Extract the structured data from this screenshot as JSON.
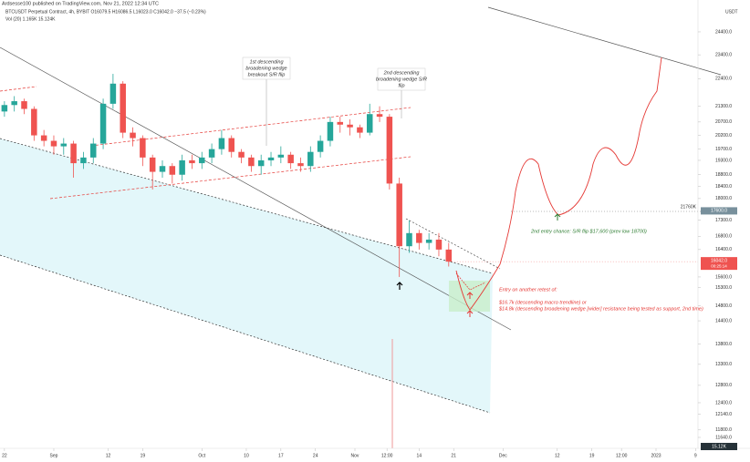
{
  "header": {
    "publisher": "Ardsesse100 published on TradingView.com, Nov 21, 2022 12:34 UTC",
    "symbol": "BTCUSDT Perpetual Contract, 4h, BYBIT  O16079.5  H16086.5  L16023.0  C16042.0  −37.5 (−0.23%)",
    "volume": "Vol (20)  1.165K  15.124K"
  },
  "chart_data": {
    "type": "candlestick",
    "log": true,
    "grid": false,
    "up_color": "#26a69a",
    "down_color": "#ef5350",
    "currency": "USDT",
    "x": [
      0,
      2,
      4,
      6,
      8,
      10,
      12,
      14,
      16,
      18,
      20,
      22,
      24,
      26,
      28,
      30,
      32,
      34,
      36,
      38,
      40,
      42,
      44,
      46,
      48,
      50,
      52,
      54,
      56,
      58,
      60,
      62,
      64,
      66,
      68,
      70,
      72,
      74,
      76,
      78,
      80,
      82,
      84,
      86,
      88,
      90
    ],
    "open": [
      21100,
      21350,
      21500,
      21200,
      20200,
      20000,
      19800,
      19900,
      19200,
      19400,
      19900,
      21400,
      22200,
      20300,
      20100,
      19400,
      18900,
      19100,
      18800,
      19300,
      19200,
      19400,
      19700,
      20100,
      19600,
      19400,
      19100,
      19300,
      19400,
      19500,
      19200,
      19100,
      19600,
      20000,
      20700,
      20600,
      20500,
      20300,
      21000,
      20900,
      18500,
      16500,
      16900,
      16600,
      16700,
      16400
    ],
    "high": [
      21500,
      21700,
      21600,
      21300,
      20400,
      20200,
      20100,
      20000,
      19600,
      20100,
      21600,
      22600,
      22300,
      20500,
      20200,
      19500,
      19300,
      19200,
      19500,
      19500,
      19600,
      19900,
      20400,
      20200,
      19700,
      19500,
      19500,
      19600,
      19800,
      19600,
      19400,
      19800,
      20200,
      20900,
      20900,
      20800,
      20600,
      21400,
      21300,
      21000,
      18700,
      17300,
      17000,
      16900,
      16900,
      16600
    ],
    "low": [
      20900,
      21100,
      21000,
      20000,
      19800,
      19500,
      19500,
      18700,
      19000,
      19200,
      19700,
      21200,
      20100,
      19800,
      19100,
      18300,
      18700,
      18500,
      18600,
      19000,
      19000,
      19200,
      19500,
      19400,
      19200,
      18900,
      18800,
      19100,
      19200,
      19000,
      18900,
      18900,
      19400,
      19800,
      20300,
      20200,
      20100,
      20200,
      20700,
      18300,
      15600,
      16300,
      16400,
      16400,
      16200,
      15900
    ],
    "close": [
      21350,
      21500,
      21200,
      20200,
      20000,
      19800,
      19900,
      19200,
      19400,
      19900,
      21400,
      22200,
      20300,
      20100,
      19400,
      18900,
      19100,
      18800,
      19300,
      19200,
      19400,
      19700,
      20100,
      19600,
      19400,
      19100,
      19300,
      19400,
      19500,
      19200,
      19100,
      19600,
      20000,
      20700,
      20600,
      20500,
      20300,
      21000,
      20900,
      18500,
      16500,
      16900,
      16600,
      16700,
      16400,
      16042
    ],
    "xlim": [
      -0.9,
      140.5
    ],
    "xticks": [
      {
        "value": 0,
        "label": "22"
      },
      {
        "value": 10,
        "label": "Sep"
      },
      {
        "value": 21,
        "label": "12"
      },
      {
        "value": 28,
        "label": "19"
      },
      {
        "value": 40,
        "label": "Oct"
      },
      {
        "value": 49,
        "label": "10"
      },
      {
        "value": 56,
        "label": "17"
      },
      {
        "value": 63,
        "label": "24"
      },
      {
        "value": 71,
        "label": "Nov"
      },
      {
        "value": 77.5,
        "label": "12:00"
      },
      {
        "value": 84,
        "label": "14"
      },
      {
        "value": 91,
        "label": "21"
      },
      {
        "value": 101,
        "label": "Dec"
      },
      {
        "value": 112,
        "label": "12"
      },
      {
        "value": 119,
        "label": "19"
      },
      {
        "value": 125,
        "label": "12:00"
      },
      {
        "value": 132,
        "label": "2023"
      },
      {
        "value": 140,
        "label": "9"
      }
    ],
    "ylim": [
      11410,
      25520
    ],
    "yticks": [
      {
        "value": 24400,
        "label": "24400.0"
      },
      {
        "value": 23400,
        "label": "23400.0"
      },
      {
        "value": 22400,
        "label": "22400.0"
      },
      {
        "value": 21300,
        "label": "21300.0"
      },
      {
        "value": 20700,
        "label": "20700.0"
      },
      {
        "value": 20200,
        "label": "20200.0"
      },
      {
        "value": 19700,
        "label": "19700.0"
      },
      {
        "value": 19300,
        "label": "19300.0"
      },
      {
        "value": 18800,
        "label": "18800.0"
      },
      {
        "value": 18400,
        "label": "18400.0"
      },
      {
        "value": 18000,
        "label": "18000.0"
      },
      {
        "value": 17300,
        "label": "17300.0"
      },
      {
        "value": 16800,
        "label": "16800.0"
      },
      {
        "value": 16400,
        "label": "16400.0"
      },
      {
        "value": 15600,
        "label": "15600.0"
      },
      {
        "value": 15300,
        "label": "15300.0"
      },
      {
        "value": 14800,
        "label": "14800.0"
      },
      {
        "value": 14400,
        "label": "14400.0"
      },
      {
        "value": 13800,
        "label": "13800.0"
      },
      {
        "value": 13300,
        "label": "13300.0"
      },
      {
        "value": 12800,
        "label": "12800.0"
      },
      {
        "value": 12400,
        "label": "12400.0"
      },
      {
        "value": 12140,
        "label": "12140.0"
      },
      {
        "value": 11800,
        "label": "11800.0"
      },
      {
        "value": 11640,
        "label": "11640.0"
      }
    ],
    "level": {
      "value": 17600,
      "label": "17600.0",
      "line_label": "21760K"
    },
    "last_price": {
      "value": 16042,
      "label": "16042.0",
      "countdown": "00:25:14"
    },
    "volume_label": "15.12K",
    "annotations": [
      [
        "1st descending",
        "broadening wedge",
        "breakout S/R flip"
      ],
      [
        "2nd descending",
        "broadening wedge S/R",
        "flip"
      ],
      [
        "Entry on another retest of:",
        "",
        "$16.7k (descending macro trendline) or",
        "$14.8k (descending broadening wedge [wider] resistance being tested as support, 2nd time)"
      ],
      [
        "2nd entry chance: S/R flip $17,600 (prev low 18700)"
      ]
    ]
  }
}
